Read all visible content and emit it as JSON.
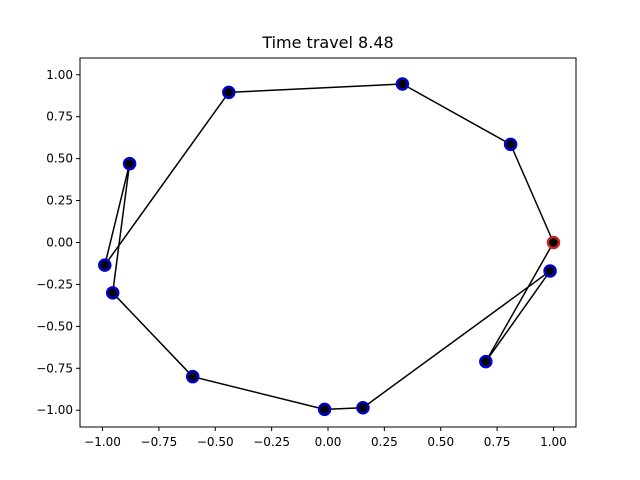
{
  "title": "Time travel 8.48",
  "chart_data": {
    "type": "scatter",
    "title": "Time travel 8.48",
    "xlabel": "",
    "ylabel": "",
    "xlim": [
      -1.1,
      1.1
    ],
    "ylim": [
      -1.1,
      1.1
    ],
    "xticks": [
      -1.0,
      -0.75,
      -0.5,
      -0.25,
      0.0,
      0.25,
      0.5,
      0.75,
      1.0
    ],
    "xtick_labels": [
      "−1.00",
      "−0.75",
      "−0.50",
      "−0.25",
      "0.00",
      "0.25",
      "0.50",
      "0.75",
      "1.00"
    ],
    "yticks": [
      1.0,
      0.75,
      0.5,
      0.25,
      0.0,
      -0.25,
      -0.5,
      -0.75,
      -1.0
    ],
    "ytick_labels": [
      "1.00",
      "0.75",
      "0.50",
      "0.25",
      "0.00",
      "−0.25",
      "−0.50",
      "−0.75",
      "−1.00"
    ],
    "grid": false,
    "points": [
      {
        "x": 1.0,
        "y": 0.0
      },
      {
        "x": 0.81,
        "y": 0.585
      },
      {
        "x": 0.33,
        "y": 0.945
      },
      {
        "x": -0.44,
        "y": 0.895
      },
      {
        "x": -0.99,
        "y": -0.135
      },
      {
        "x": -0.88,
        "y": 0.47
      },
      {
        "x": -0.955,
        "y": -0.3
      },
      {
        "x": -0.6,
        "y": -0.8
      },
      {
        "x": -0.015,
        "y": -0.995
      },
      {
        "x": 0.155,
        "y": -0.985
      },
      {
        "x": 0.985,
        "y": -0.17
      },
      {
        "x": 0.7,
        "y": -0.71
      }
    ],
    "tour": [
      0,
      1,
      2,
      3,
      4,
      5,
      6,
      7,
      8,
      9,
      10,
      11,
      0
    ],
    "start_index": 0,
    "colors": {
      "line": "#000000",
      "marker_edge": "#0000cc",
      "marker_fill": "#000000",
      "start_edge": "#cc2222"
    }
  }
}
